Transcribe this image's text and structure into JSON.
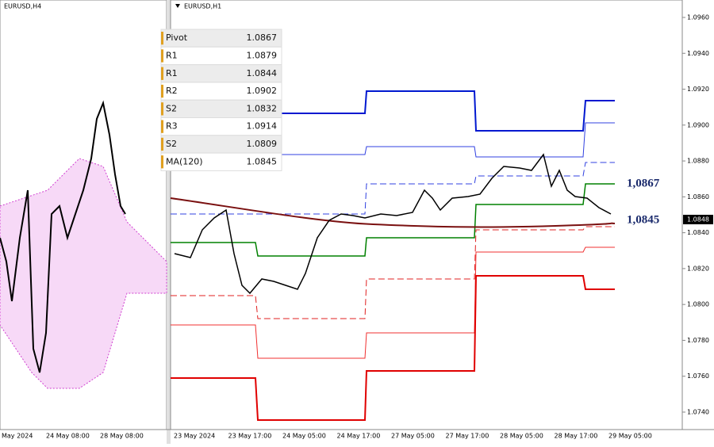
{
  "left_panel": {
    "title": "EURUSD,H4",
    "time_labels": [
      "May 2024",
      "24 May 08:00",
      "28 May 08:00"
    ]
  },
  "right_panel": {
    "title": "EURUSD,H1",
    "levels_table": [
      [
        "Pivot",
        "1.0867"
      ],
      [
        "R1",
        "1.0879"
      ],
      [
        "R1",
        "1.0844"
      ],
      [
        "R2",
        "1.0902"
      ],
      [
        "S2",
        "1.0832"
      ],
      [
        "R3",
        "1.0914"
      ],
      [
        "S2",
        "1.0809"
      ],
      [
        "MA(120)",
        "1.0845"
      ]
    ],
    "annotations": [
      "1,0867",
      "1,0845"
    ],
    "current_price": "1.0848",
    "price_labels": [
      "1.0960",
      "1.0940",
      "1.0920",
      "1.0900",
      "1.0880",
      "1.0860",
      "1.0840",
      "1.0820",
      "1.0800",
      "1.0780",
      "1.0760",
      "1.0740"
    ],
    "time_labels": [
      "23 May 2024",
      "23 May 17:00",
      "24 May 05:00",
      "24 May 17:00",
      "27 May 05:00",
      "27 May 17:00",
      "28 May 05:00",
      "28 May 17:00",
      "29 May 05:00"
    ]
  }
}
